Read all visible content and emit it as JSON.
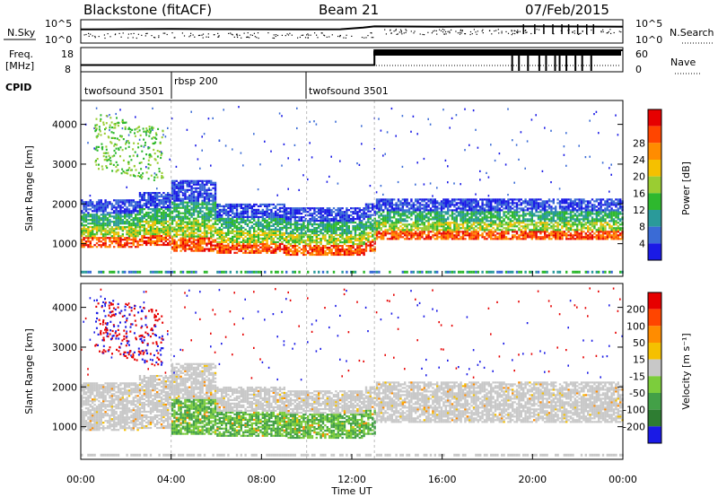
{
  "header": {
    "radar": "Blackstone (fitACF)",
    "beam": "Beam 21",
    "date": "07/Feb/2015"
  },
  "strip": {
    "nsky_label": "N.Sky",
    "nsearch_label": "N.Search",
    "freq_label_line1": "Freq.",
    "freq_label_line2": "[MHz]",
    "nave_label": "Nave",
    "cpid_label": "CPID",
    "noise_left_ticks": [
      "10^5",
      "10^0"
    ],
    "noise_right_ticks": [
      "10^5",
      "10^0"
    ],
    "freq_ticks": [
      "18",
      "8"
    ],
    "nave_ticks": [
      "60",
      "0"
    ]
  },
  "chart_data": [
    {
      "type": "line",
      "name": "noise",
      "x_range_hours": [
        0,
        24
      ],
      "series": [
        {
          "name": "N.Sky",
          "x": [
            0,
            2,
            4,
            6,
            8,
            10,
            11.5,
            12.5,
            13,
            16,
            20,
            24
          ],
          "values": [
            1000,
            1200,
            1300,
            1200,
            1100,
            1000,
            1100,
            3000,
            6000,
            5000,
            6000,
            5000
          ]
        }
      ]
    },
    {
      "type": "line",
      "name": "frequency",
      "x_range_hours": [
        0,
        24
      ],
      "series": [
        {
          "name": "Freq.",
          "x": [
            0,
            13,
            13,
            24
          ],
          "values": [
            10.5,
            10.5,
            18,
            18
          ]
        }
      ]
    },
    {
      "type": "table",
      "name": "cpid",
      "segments": [
        {
          "label": "twofsound 3501",
          "start": 0,
          "end": 4
        },
        {
          "label": "rbsp 200",
          "start": 4,
          "end": 10
        },
        {
          "label": "twofsound 3501",
          "start": 10,
          "end": 24
        }
      ]
    },
    {
      "type": "heatmap",
      "name": "power",
      "ylabel": "Slant Range [km]",
      "ylim": [
        180,
        4600
      ],
      "xlim_hours": [
        0,
        24
      ],
      "yticks": [
        "1000",
        "2000",
        "3000",
        "4000"
      ],
      "colorbar_label": "Power [dB]",
      "colorbar_ticks": [
        "4",
        "8",
        "12",
        "16",
        "20",
        "24",
        "28"
      ],
      "colors": [
        "#1a1ae6",
        "#3a6bd6",
        "#2a9a9a",
        "#2eb82e",
        "#9acd32",
        "#f5c000",
        "#ff8c00",
        "#ff4500",
        "#e60000"
      ]
    },
    {
      "type": "heatmap",
      "name": "velocity",
      "ylabel": "Slant Range [km]",
      "ylim": [
        180,
        4600
      ],
      "xlim_hours": [
        0,
        24
      ],
      "yticks": [
        "1000",
        "2000",
        "3000",
        "4000"
      ],
      "colorbar_label": "Velocity [m s⁻¹]",
      "colorbar_ticks": [
        "200",
        "100",
        "50",
        "15",
        "-15",
        "-50",
        "-100",
        "-200"
      ],
      "colors": [
        "#1a1ae6",
        "#2e7d32",
        "#43a047",
        "#7ccd3c",
        "#c8c8c8",
        "#f5c000",
        "#ff8c00",
        "#ff4500",
        "#e60000"
      ]
    }
  ],
  "xaxis": {
    "label": "Time UT",
    "ticks": [
      "00:00",
      "04:00",
      "08:00",
      "12:00",
      "16:00",
      "20:00",
      "00:00"
    ]
  }
}
